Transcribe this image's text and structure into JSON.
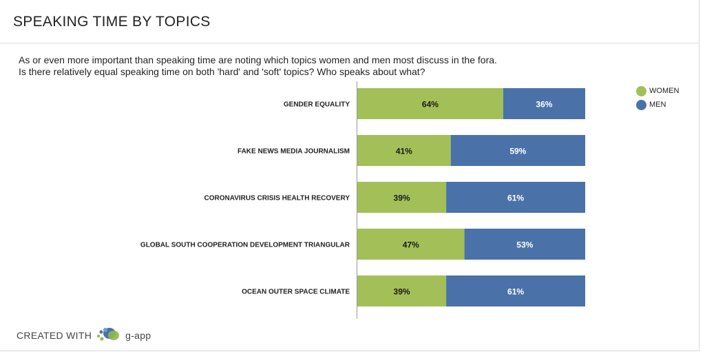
{
  "header": {
    "title": "SPEAKING TIME BY TOPICS",
    "description_line1": "As or even more important than speaking time are noting which topics women and men most discuss in the fora.",
    "description_line2": "Is there relatively equal speaking time on both 'hard' and 'soft' topics? Who speaks about what?"
  },
  "colors": {
    "women": "#a3bf58",
    "men": "#4a72a9"
  },
  "chart_data": {
    "type": "bar",
    "orientation": "horizontal",
    "stacked": true,
    "categories": [
      "GENDER EQUALITY",
      "FAKE NEWS MEDIA JOURNALISM",
      "CORONAVIRUS CRISIS HEALTH RECOVERY",
      "GLOBAL SOUTH COOPERATION DEVELOPMENT TRIANGULAR",
      "OCEAN OUTER SPACE CLIMATE"
    ],
    "series": [
      {
        "name": "WOMEN",
        "values": [
          64,
          41,
          39,
          47,
          39
        ],
        "labels": [
          "64%",
          "41%",
          "39%",
          "47%",
          "39%"
        ]
      },
      {
        "name": "MEN",
        "values": [
          36,
          59,
          61,
          53,
          61
        ],
        "labels": [
          "36%",
          "59%",
          "61%",
          "53%",
          "61%"
        ]
      }
    ],
    "xlim": [
      0,
      100
    ],
    "legend_position": "top-right",
    "grid": false
  },
  "footer": {
    "created_with": "CREATED WITH",
    "brand": "g-app"
  }
}
